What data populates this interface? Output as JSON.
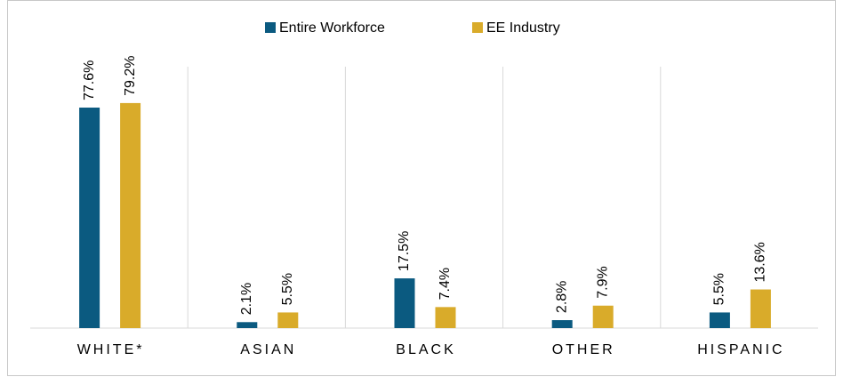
{
  "chart_data": {
    "type": "bar",
    "categories": [
      "WHITE*",
      "ASIAN",
      "BLACK",
      "OTHER",
      "HISPANIC"
    ],
    "series": [
      {
        "name": "Entire Workforce",
        "color": "#0b5a80",
        "values": [
          77.6,
          2.1,
          17.5,
          2.8,
          5.5
        ],
        "value_labels": [
          "77.6%",
          "2.1%",
          "17.5%",
          "2.8%",
          "5.5%"
        ]
      },
      {
        "name": "EE Industry",
        "color": "#d9ab2a",
        "values": [
          79.2,
          5.5,
          7.4,
          7.9,
          13.6
        ],
        "value_labels": [
          "79.2%",
          "5.5%",
          "7.4%",
          "7.9%",
          "13.6%"
        ]
      }
    ],
    "ylim": [
      0,
      92
    ],
    "legend": "top"
  }
}
